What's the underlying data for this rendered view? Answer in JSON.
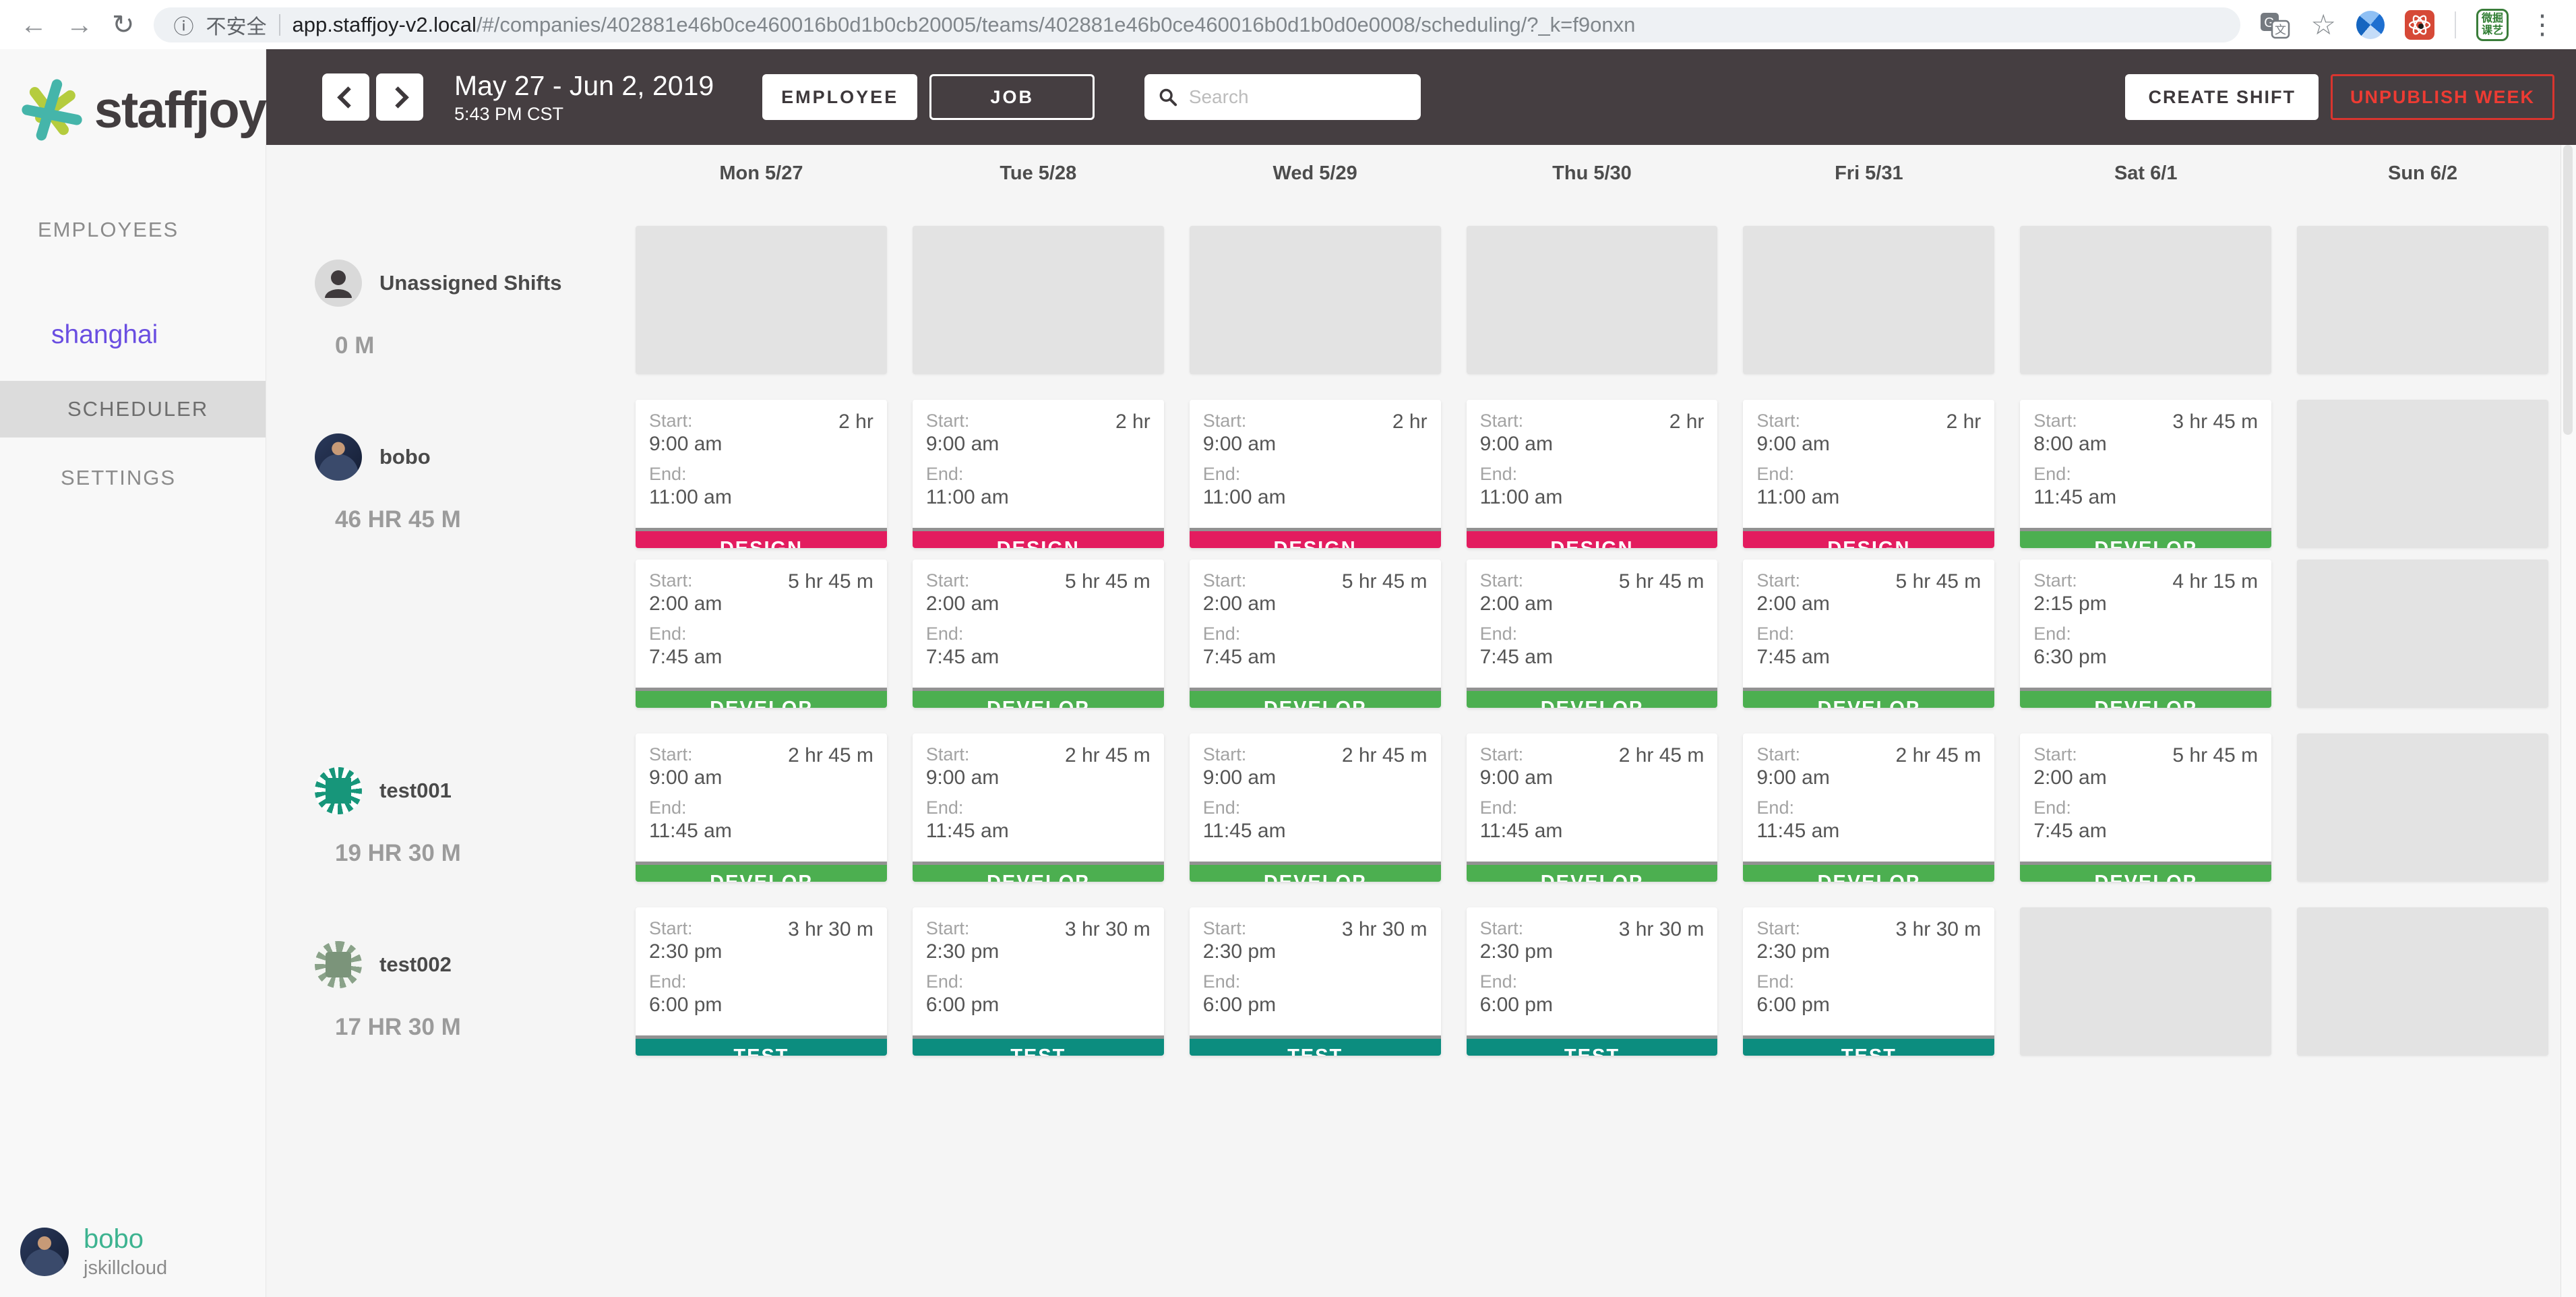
{
  "browser": {
    "icons": {
      "back": "←",
      "forward": "→",
      "reload": "↻",
      "info": "ⓘ",
      "star": "☆",
      "menu": "⋮"
    },
    "security_label": "不安全",
    "url_domain": "app.staffjoy-v2.local",
    "url_path": "/#/companies/402881e46b0ce460016b0d1b0cb20005/teams/402881e46b0ce460016b0d1b0d0e0008/scheduling/?_k=f9onxn",
    "green_extension_chars": "微掘课艺"
  },
  "sidebar": {
    "brand": "staffjoy",
    "employees_label": "EMPLOYEES",
    "team_name": "shanghai",
    "scheduler_label": "SCHEDULER",
    "settings_label": "SETTINGS",
    "user": {
      "name": "bobo",
      "company": "jskillcloud"
    }
  },
  "header": {
    "date_range": "May 27 - Jun 2, 2019",
    "time": "5:43 PM CST",
    "employee_toggle": "EMPLOYEE",
    "job_toggle": "JOB",
    "search_placeholder": "Search",
    "create_shift_label": "CREATE SHIFT",
    "unpublish_label": "UNPUBLISH WEEK"
  },
  "colors": {
    "header_bg": "#453e41",
    "accent_purple": "#6a4ee1",
    "accent_teal": "#3db390",
    "danger_red": "#ee3b33"
  },
  "schedule": {
    "start_label": "Start:",
    "end_label": "End:",
    "days": [
      "Mon 5/27",
      "Tue 5/28",
      "Wed 5/29",
      "Thu 5/30",
      "Fri 5/31",
      "Sat 6/1",
      "Sun 6/2"
    ],
    "job_colors": {
      "DESIGN": "#e31c5f",
      "DEVELOP": "#4caf50",
      "TEST": "#0c8d7f"
    },
    "rows": [
      {
        "employee": "Unassigned Shifts",
        "total": "0 M",
        "avatar": "silhouette",
        "lines": [
          [
            null,
            null,
            null,
            null,
            null,
            null,
            null
          ]
        ]
      },
      {
        "employee": "bobo",
        "total": "46 HR 45 M",
        "avatar": "photo",
        "lines": [
          [
            {
              "start": "9:00 am",
              "end": "11:00 am",
              "duration": "2 hr",
              "job": "DESIGN"
            },
            {
              "start": "9:00 am",
              "end": "11:00 am",
              "duration": "2 hr",
              "job": "DESIGN"
            },
            {
              "start": "9:00 am",
              "end": "11:00 am",
              "duration": "2 hr",
              "job": "DESIGN"
            },
            {
              "start": "9:00 am",
              "end": "11:00 am",
              "duration": "2 hr",
              "job": "DESIGN"
            },
            {
              "start": "9:00 am",
              "end": "11:00 am",
              "duration": "2 hr",
              "job": "DESIGN"
            },
            {
              "start": "8:00 am",
              "end": "11:45 am",
              "duration": "3 hr 45 m",
              "job": "DEVELOP"
            },
            null
          ],
          [
            {
              "start": "2:00 am",
              "end": "7:45 am",
              "duration": "5 hr 45 m",
              "job": "DEVELOP"
            },
            {
              "start": "2:00 am",
              "end": "7:45 am",
              "duration": "5 hr 45 m",
              "job": "DEVELOP"
            },
            {
              "start": "2:00 am",
              "end": "7:45 am",
              "duration": "5 hr 45 m",
              "job": "DEVELOP"
            },
            {
              "start": "2:00 am",
              "end": "7:45 am",
              "duration": "5 hr 45 m",
              "job": "DEVELOP"
            },
            {
              "start": "2:00 am",
              "end": "7:45 am",
              "duration": "5 hr 45 m",
              "job": "DEVELOP"
            },
            {
              "start": "2:15 pm",
              "end": "6:30 pm",
              "duration": "4 hr 15 m",
              "job": "DEVELOP"
            },
            null
          ]
        ]
      },
      {
        "employee": "test001",
        "total": "19 HR 30 M",
        "avatar": "identicon-teal",
        "lines": [
          [
            {
              "start": "9:00 am",
              "end": "11:45 am",
              "duration": "2 hr 45 m",
              "job": "DEVELOP"
            },
            {
              "start": "9:00 am",
              "end": "11:45 am",
              "duration": "2 hr 45 m",
              "job": "DEVELOP"
            },
            {
              "start": "9:00 am",
              "end": "11:45 am",
              "duration": "2 hr 45 m",
              "job": "DEVELOP"
            },
            {
              "start": "9:00 am",
              "end": "11:45 am",
              "duration": "2 hr 45 m",
              "job": "DEVELOP"
            },
            {
              "start": "9:00 am",
              "end": "11:45 am",
              "duration": "2 hr 45 m",
              "job": "DEVELOP"
            },
            {
              "start": "2:00 am",
              "end": "7:45 am",
              "duration": "5 hr 45 m",
              "job": "DEVELOP"
            },
            null
          ]
        ]
      },
      {
        "employee": "test002",
        "total": "17 HR 30 M",
        "avatar": "identicon-sage",
        "lines": [
          [
            {
              "start": "2:30 pm",
              "end": "6:00 pm",
              "duration": "3 hr 30 m",
              "job": "TEST"
            },
            {
              "start": "2:30 pm",
              "end": "6:00 pm",
              "duration": "3 hr 30 m",
              "job": "TEST"
            },
            {
              "start": "2:30 pm",
              "end": "6:00 pm",
              "duration": "3 hr 30 m",
              "job": "TEST"
            },
            {
              "start": "2:30 pm",
              "end": "6:00 pm",
              "duration": "3 hr 30 m",
              "job": "TEST"
            },
            {
              "start": "2:30 pm",
              "end": "6:00 pm",
              "duration": "3 hr 30 m",
              "job": "TEST"
            },
            null,
            null
          ]
        ]
      }
    ]
  }
}
